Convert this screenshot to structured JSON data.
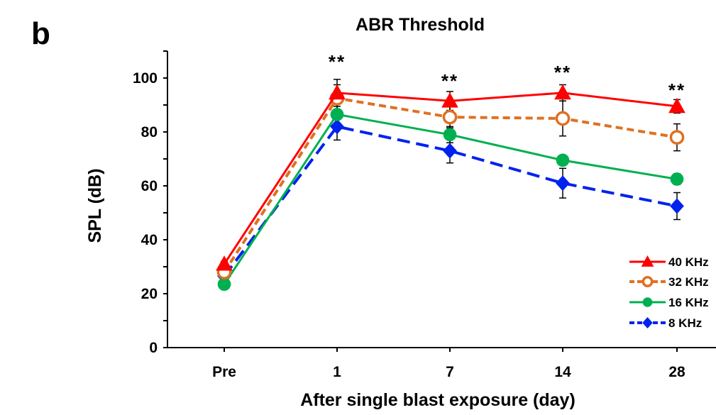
{
  "panel_label": "b",
  "chart_data": {
    "type": "line",
    "title": "ABR Threshold",
    "xlabel": "After single blast exposure (day)",
    "ylabel": "SPL (dB)",
    "categories": [
      "Pre",
      "1",
      "7",
      "14",
      "28"
    ],
    "ylim": [
      0,
      110
    ],
    "yticks": [
      0,
      20,
      40,
      60,
      80,
      100
    ],
    "grid": false,
    "legend_position": "bottom-right",
    "series": [
      {
        "name": "40 KHz",
        "color": "#ff0000",
        "marker": "triangle-filled",
        "line": "solid",
        "values": [
          31,
          94.5,
          91.5,
          94.5,
          89.5
        ],
        "errors": [
          1,
          5,
          3.5,
          3,
          2.5
        ]
      },
      {
        "name": "32 KHz",
        "color": "#e07020",
        "marker": "circle-open",
        "line": "dashed",
        "values": [
          28,
          92.5,
          85.5,
          85,
          78
        ],
        "errors": [
          1,
          5,
          4,
          6.5,
          5
        ]
      },
      {
        "name": "16 KHz",
        "color": "#00b050",
        "marker": "circle-filled",
        "line": "solid",
        "values": [
          23.5,
          86.5,
          79,
          69.5,
          62.5
        ],
        "errors": [
          1,
          5,
          3,
          1,
          2
        ]
      },
      {
        "name": "8 KHz",
        "color": "#0022ee",
        "marker": "diamond-filled",
        "line": "dashed",
        "values": [
          26.5,
          82,
          73,
          61,
          52.5
        ],
        "errors": [
          1,
          5,
          4.5,
          5.5,
          5
        ]
      }
    ],
    "annotations": [
      {
        "category": "1",
        "text": "**"
      },
      {
        "category": "7",
        "text": "**"
      },
      {
        "category": "14",
        "text": "**"
      },
      {
        "category": "28",
        "text": "**"
      }
    ]
  }
}
